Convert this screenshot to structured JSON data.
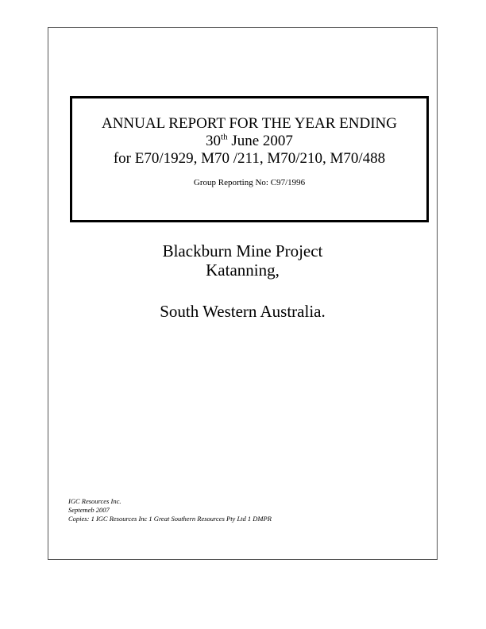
{
  "report": {
    "title_line1": "ANNUAL REPORT FOR THE YEAR ENDING",
    "date_day": "30",
    "date_suffix": "th",
    "date_rest": " June 2007",
    "tenements": "for E70/1929,  M70 /211, M70/210, M70/488",
    "group_reporting": "Group Reporting No: C97/1996"
  },
  "project": {
    "name": "Blackburn Mine Project",
    "town": "Katanning,",
    "region": "South Western Australia."
  },
  "footer": {
    "company": "IGC Resources Inc.",
    "date": "Septemeb 2007",
    "copies": "Copies: 1 IGC Resources Inc 1 Great Southern Resources Pty Ltd  1 DMPR"
  }
}
